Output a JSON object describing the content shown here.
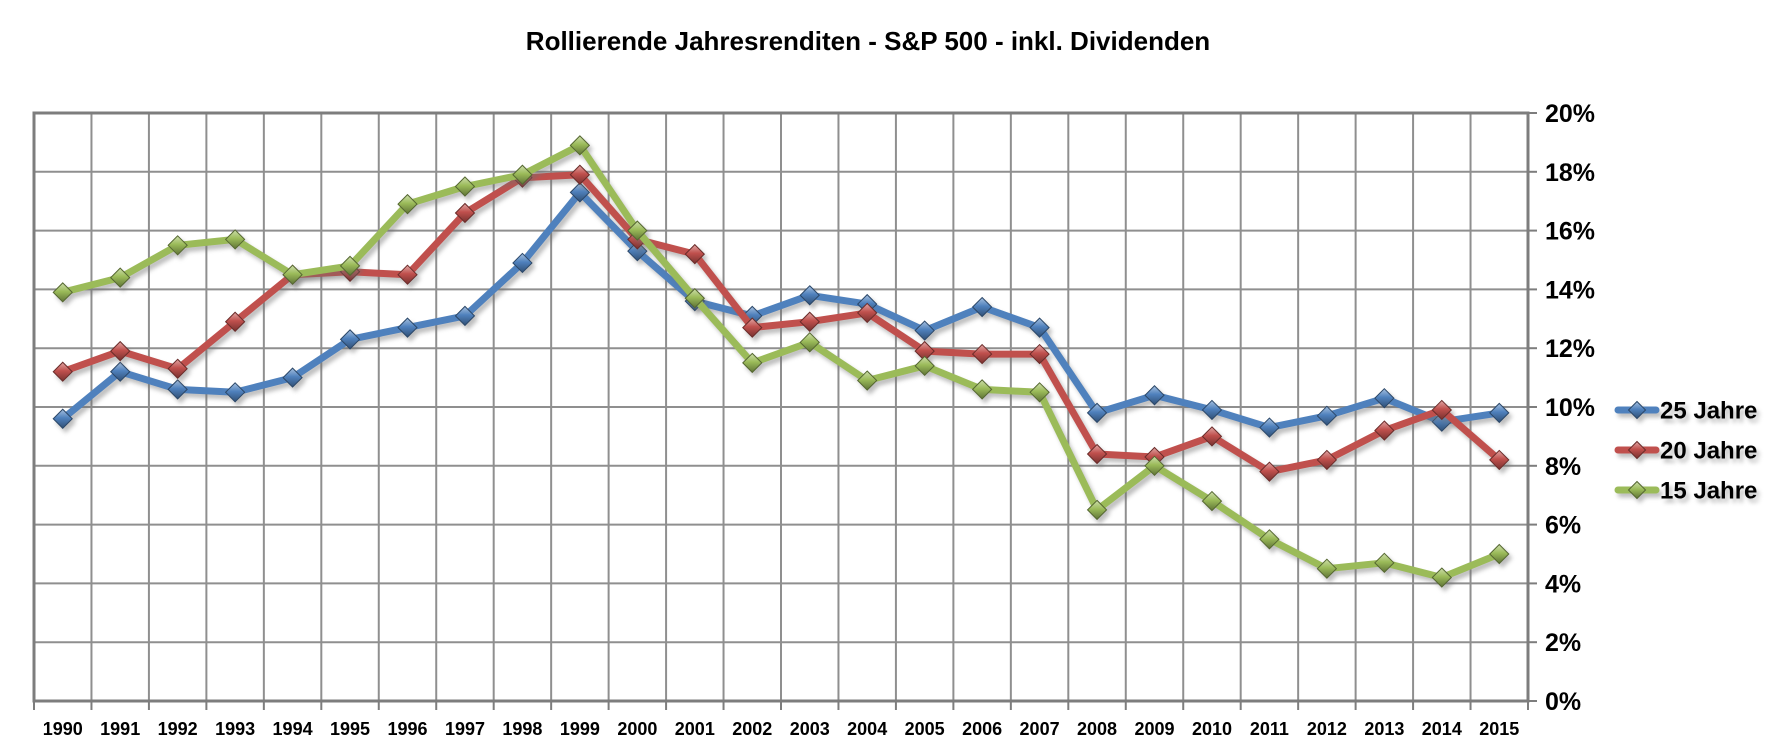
{
  "title": "Rollierende Jahresrenditen - S&P 500 - inkl. Dividenden",
  "chart_data": {
    "type": "line",
    "categories": [
      "1990",
      "1991",
      "1992",
      "1993",
      "1994",
      "1995",
      "1996",
      "1997",
      "1998",
      "1999",
      "2000",
      "2001",
      "2002",
      "2003",
      "2004",
      "2005",
      "2006",
      "2007",
      "2008",
      "2009",
      "2010",
      "2011",
      "2012",
      "2013",
      "2014",
      "2015"
    ],
    "series": [
      {
        "name": "25 Jahre",
        "color": "#4F81BD",
        "values": [
          9.6,
          11.2,
          10.6,
          10.5,
          11.0,
          12.3,
          12.7,
          13.1,
          14.9,
          17.3,
          15.3,
          13.6,
          13.1,
          13.8,
          13.5,
          12.6,
          13.4,
          12.7,
          9.8,
          10.4,
          9.9,
          9.3,
          9.7,
          10.3,
          9.5,
          9.8
        ]
      },
      {
        "name": "20 Jahre",
        "color": "#C0504D",
        "values": [
          11.2,
          11.9,
          11.3,
          12.9,
          14.5,
          14.6,
          14.5,
          16.6,
          17.8,
          17.9,
          15.7,
          15.2,
          12.7,
          12.9,
          13.2,
          11.9,
          11.8,
          11.8,
          8.4,
          8.3,
          9.0,
          7.8,
          8.2,
          9.2,
          9.9,
          8.2
        ]
      },
      {
        "name": "15 Jahre",
        "color": "#9BBB59",
        "values": [
          13.9,
          14.4,
          15.5,
          15.7,
          14.5,
          14.8,
          16.9,
          17.5,
          17.9,
          18.9,
          16.0,
          13.7,
          11.5,
          12.2,
          10.9,
          11.4,
          10.6,
          10.5,
          6.5,
          8.0,
          6.8,
          5.5,
          4.5,
          4.7,
          4.2,
          5.0
        ]
      }
    ],
    "title": "Rollierende Jahresrenditen - S&P 500 - inkl. Dividenden",
    "xlabel": "",
    "ylabel": "",
    "ylim": [
      0,
      20
    ],
    "y_major_step": 2,
    "y_tick_labels": [
      "0%",
      "2%",
      "4%",
      "6%",
      "8%",
      "10%",
      "12%",
      "14%",
      "16%",
      "18%",
      "20%"
    ],
    "grid": true,
    "marker": "diamond",
    "legend_position": "right"
  },
  "colors": {
    "background": "#ffffff",
    "grid": "#8f8f8f",
    "border": "#7d7d7d",
    "text": "#000000"
  }
}
